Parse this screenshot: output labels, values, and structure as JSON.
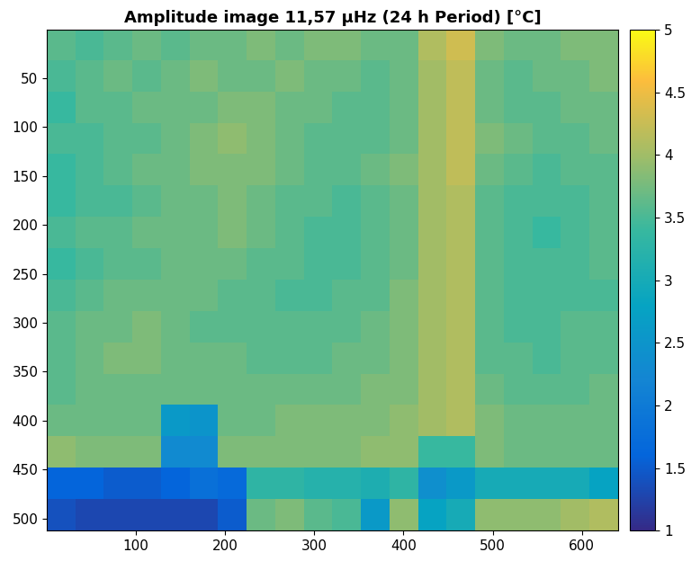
{
  "chart_data": {
    "type": "heatmap",
    "title": "Amplitude image 11,57 µHz (24 h Period) [°C]",
    "xlim": [
      0.5,
      640.5
    ],
    "xticks": [
      100,
      200,
      300,
      400,
      500,
      600
    ],
    "ylim": [
      512.5,
      0.5
    ],
    "yticks": [
      50,
      100,
      150,
      200,
      250,
      300,
      350,
      400,
      450,
      500
    ],
    "grid": false,
    "colorbar_lim": [
      1,
      5
    ],
    "colorbar_ticks": [
      1,
      1.5,
      2,
      2.5,
      3,
      3.5,
      4,
      4.5,
      5
    ],
    "cells": [
      [
        3.6,
        3.5,
        3.6,
        3.7,
        3.6,
        3.7,
        3.7,
        3.8,
        3.7,
        3.8,
        3.8,
        3.7,
        3.7,
        4.1,
        4.3,
        3.8,
        3.7,
        3.7,
        3.8,
        3.8
      ],
      [
        3.5,
        3.6,
        3.7,
        3.6,
        3.7,
        3.8,
        3.7,
        3.7,
        3.8,
        3.7,
        3.7,
        3.6,
        3.7,
        4.0,
        4.2,
        3.7,
        3.6,
        3.7,
        3.7,
        3.8
      ],
      [
        3.4,
        3.6,
        3.6,
        3.7,
        3.7,
        3.7,
        3.8,
        3.8,
        3.7,
        3.7,
        3.6,
        3.6,
        3.7,
        4.0,
        4.2,
        3.7,
        3.6,
        3.6,
        3.7,
        3.7
      ],
      [
        3.5,
        3.5,
        3.6,
        3.6,
        3.7,
        3.8,
        3.9,
        3.8,
        3.7,
        3.6,
        3.6,
        3.6,
        3.7,
        4.0,
        4.2,
        3.8,
        3.7,
        3.6,
        3.6,
        3.7
      ],
      [
        3.4,
        3.5,
        3.6,
        3.7,
        3.7,
        3.8,
        3.8,
        3.8,
        3.7,
        3.6,
        3.6,
        3.7,
        3.8,
        4.0,
        4.2,
        3.7,
        3.6,
        3.5,
        3.6,
        3.6
      ],
      [
        3.4,
        3.5,
        3.5,
        3.6,
        3.7,
        3.7,
        3.8,
        3.7,
        3.6,
        3.6,
        3.5,
        3.6,
        3.7,
        4.0,
        4.1,
        3.6,
        3.5,
        3.5,
        3.5,
        3.6
      ],
      [
        3.5,
        3.6,
        3.6,
        3.7,
        3.7,
        3.7,
        3.8,
        3.7,
        3.6,
        3.5,
        3.5,
        3.6,
        3.7,
        4.0,
        4.1,
        3.6,
        3.5,
        3.4,
        3.5,
        3.6
      ],
      [
        3.4,
        3.5,
        3.6,
        3.6,
        3.7,
        3.7,
        3.7,
        3.6,
        3.6,
        3.5,
        3.5,
        3.6,
        3.7,
        4.0,
        4.1,
        3.6,
        3.5,
        3.5,
        3.5,
        3.6
      ],
      [
        3.5,
        3.6,
        3.7,
        3.7,
        3.7,
        3.7,
        3.6,
        3.6,
        3.5,
        3.5,
        3.6,
        3.6,
        3.8,
        4.0,
        4.1,
        3.6,
        3.5,
        3.5,
        3.5,
        3.5
      ],
      [
        3.6,
        3.7,
        3.7,
        3.8,
        3.7,
        3.6,
        3.6,
        3.6,
        3.6,
        3.6,
        3.6,
        3.7,
        3.8,
        4.0,
        4.1,
        3.6,
        3.5,
        3.5,
        3.6,
        3.6
      ],
      [
        3.6,
        3.7,
        3.8,
        3.8,
        3.7,
        3.7,
        3.7,
        3.6,
        3.6,
        3.6,
        3.7,
        3.7,
        3.8,
        4.0,
        4.1,
        3.6,
        3.6,
        3.5,
        3.6,
        3.6
      ],
      [
        3.6,
        3.7,
        3.7,
        3.7,
        3.7,
        3.7,
        3.7,
        3.7,
        3.7,
        3.7,
        3.7,
        3.8,
        3.8,
        4.0,
        4.1,
        3.7,
        3.6,
        3.6,
        3.6,
        3.7
      ],
      [
        3.7,
        3.7,
        3.7,
        3.7,
        2.6,
        2.5,
        3.7,
        3.7,
        3.8,
        3.8,
        3.8,
        3.8,
        3.9,
        4.0,
        4.1,
        3.8,
        3.7,
        3.7,
        3.7,
        3.7
      ],
      [
        3.9,
        3.8,
        3.8,
        3.8,
        2.3,
        2.3,
        3.8,
        3.8,
        3.8,
        3.8,
        3.8,
        3.9,
        3.9,
        3.4,
        3.4,
        3.8,
        3.7,
        3.7,
        3.7,
        3.7
      ],
      [
        1.6,
        1.6,
        1.5,
        1.5,
        1.6,
        1.8,
        1.7,
        3.3,
        3.3,
        3.2,
        3.2,
        3.1,
        3.3,
        2.4,
        2.6,
        3.0,
        3.0,
        3.0,
        3.0,
        2.8
      ],
      [
        1.4,
        1.3,
        1.3,
        1.3,
        1.3,
        1.3,
        1.5,
        3.7,
        3.8,
        3.6,
        3.5,
        2.6,
        3.9,
        2.8,
        3.0,
        3.9,
        3.9,
        3.9,
        4.0,
        4.1
      ]
    ]
  }
}
